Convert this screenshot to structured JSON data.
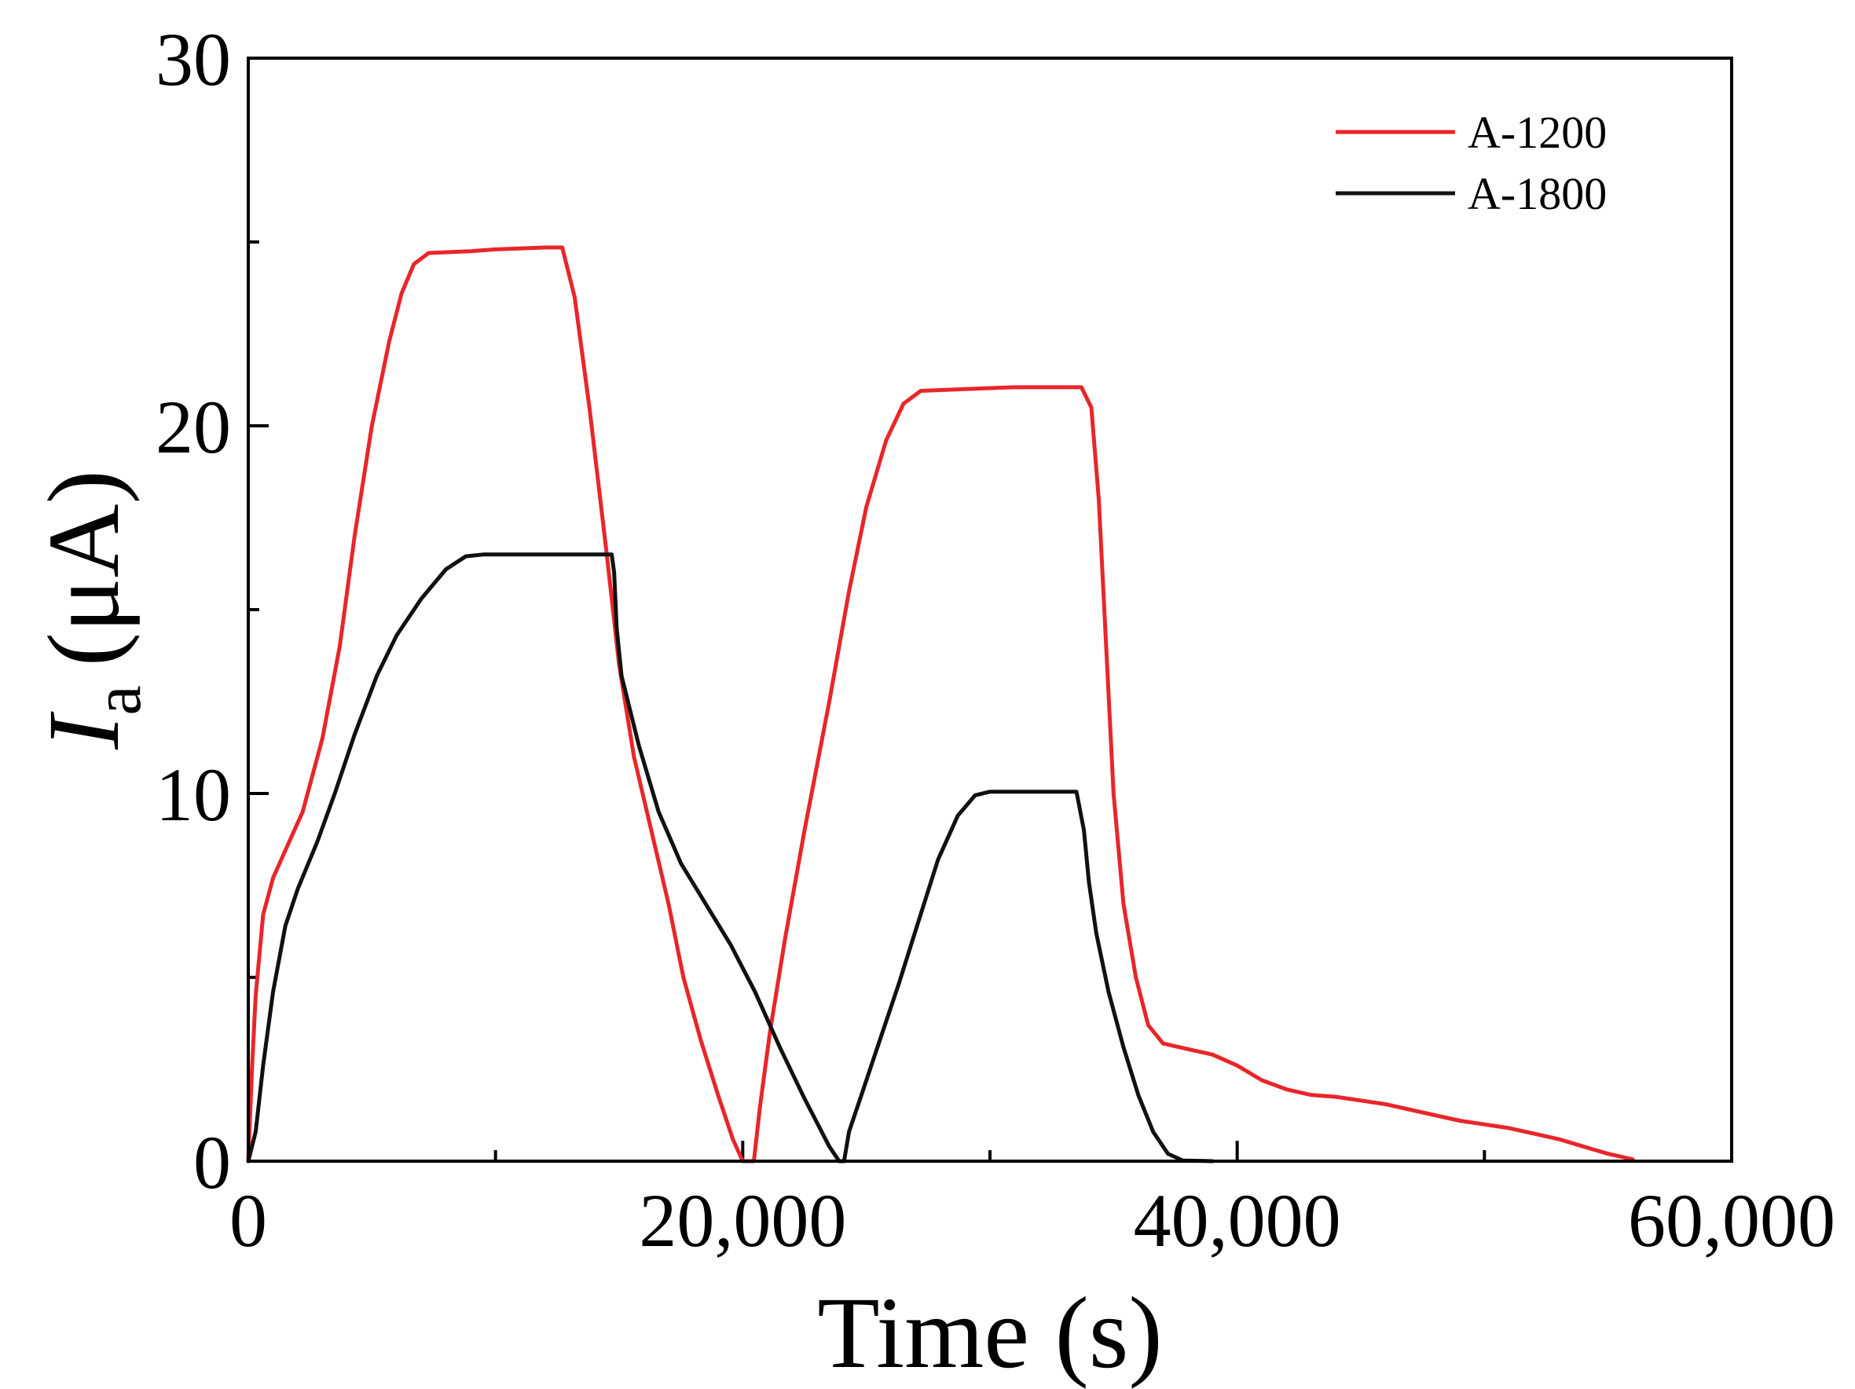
{
  "chart_data": {
    "type": "line",
    "title": "",
    "xlabel": "Time (s)",
    "ylabel_main": "I",
    "ylabel_sub": "a",
    "ylabel_unit": "(μA)",
    "xlim": [
      0,
      60000
    ],
    "ylim": [
      0,
      30
    ],
    "x_major_ticks": [
      0,
      20000,
      40000,
      60000
    ],
    "x_tick_labels": [
      "0",
      "20,000",
      "40,000",
      "60,000"
    ],
    "x_minor_ticks": [
      10000,
      30000,
      50000
    ],
    "y_major_ticks": [
      0,
      10,
      20,
      30
    ],
    "y_tick_labels": [
      "0",
      "10",
      "20",
      "30"
    ],
    "y_minor_ticks": [
      5,
      15,
      25
    ],
    "grid": false,
    "legend_position": "top-right",
    "series": [
      {
        "name": "A-1200",
        "color": "#e8262a",
        "points": [
          [
            0,
            0
          ],
          [
            150,
            2.5
          ],
          [
            300,
            4.5
          ],
          [
            600,
            6.7
          ],
          [
            1000,
            7.7
          ],
          [
            1600,
            8.6
          ],
          [
            2200,
            9.5
          ],
          [
            3000,
            11.5
          ],
          [
            3700,
            14.0
          ],
          [
            4300,
            17.0
          ],
          [
            5000,
            20.0
          ],
          [
            5700,
            22.3
          ],
          [
            6200,
            23.6
          ],
          [
            6700,
            24.4
          ],
          [
            7300,
            24.7
          ],
          [
            9000,
            24.75
          ],
          [
            10000,
            24.8
          ],
          [
            12000,
            24.85
          ],
          [
            12700,
            24.85
          ],
          [
            13200,
            23.5
          ],
          [
            13800,
            20.5
          ],
          [
            14500,
            16.5
          ],
          [
            15000,
            13.5
          ],
          [
            15600,
            11.0
          ],
          [
            16300,
            9.0
          ],
          [
            17000,
            7.0
          ],
          [
            17600,
            5.0
          ],
          [
            18300,
            3.3
          ],
          [
            19000,
            1.8
          ],
          [
            19600,
            0.6
          ],
          [
            20000,
            0
          ],
          [
            20450,
            0
          ],
          [
            20700,
            1.5
          ],
          [
            21100,
            3.5
          ],
          [
            21700,
            6.0
          ],
          [
            22500,
            9.0
          ],
          [
            23500,
            12.5
          ],
          [
            24300,
            15.5
          ],
          [
            25000,
            17.8
          ],
          [
            25800,
            19.6
          ],
          [
            26500,
            20.6
          ],
          [
            27200,
            20.95
          ],
          [
            29000,
            21.0
          ],
          [
            31000,
            21.05
          ],
          [
            33700,
            21.05
          ],
          [
            34100,
            20.5
          ],
          [
            34400,
            18.0
          ],
          [
            34700,
            14.0
          ],
          [
            35000,
            10.0
          ],
          [
            35400,
            7.0
          ],
          [
            35900,
            5.0
          ],
          [
            36400,
            3.7
          ],
          [
            37000,
            3.2
          ],
          [
            38000,
            3.05
          ],
          [
            39000,
            2.9
          ],
          [
            40000,
            2.6
          ],
          [
            41000,
            2.2
          ],
          [
            42000,
            1.95
          ],
          [
            43000,
            1.8
          ],
          [
            44000,
            1.75
          ],
          [
            45000,
            1.65
          ],
          [
            46000,
            1.55
          ],
          [
            47000,
            1.4
          ],
          [
            48000,
            1.25
          ],
          [
            49000,
            1.1
          ],
          [
            50000,
            1.0
          ],
          [
            51000,
            0.9
          ],
          [
            52000,
            0.75
          ],
          [
            53000,
            0.6
          ],
          [
            54000,
            0.4
          ],
          [
            55000,
            0.2
          ],
          [
            56000,
            0.05
          ]
        ]
      },
      {
        "name": "A-1800",
        "color": "#111111",
        "points": [
          [
            0,
            0
          ],
          [
            300,
            0.8
          ],
          [
            600,
            2.6
          ],
          [
            1000,
            4.6
          ],
          [
            1500,
            6.4
          ],
          [
            2000,
            7.4
          ],
          [
            2800,
            8.7
          ],
          [
            3500,
            10.0
          ],
          [
            4300,
            11.6
          ],
          [
            5200,
            13.2
          ],
          [
            6000,
            14.3
          ],
          [
            7000,
            15.3
          ],
          [
            8000,
            16.1
          ],
          [
            8800,
            16.45
          ],
          [
            9500,
            16.5
          ],
          [
            11000,
            16.5
          ],
          [
            12500,
            16.5
          ],
          [
            14700,
            16.5
          ],
          [
            14800,
            16.0
          ],
          [
            14900,
            14.5
          ],
          [
            15100,
            13.2
          ],
          [
            15800,
            11.3
          ],
          [
            16600,
            9.5
          ],
          [
            17500,
            8.1
          ],
          [
            18500,
            7.0
          ],
          [
            19500,
            5.9
          ],
          [
            20500,
            4.6
          ],
          [
            21500,
            3.1
          ],
          [
            22500,
            1.7
          ],
          [
            23500,
            0.4
          ],
          [
            23900,
            0
          ],
          [
            24100,
            0
          ],
          [
            24300,
            0.8
          ],
          [
            24800,
            1.8
          ],
          [
            25500,
            3.2
          ],
          [
            26300,
            4.8
          ],
          [
            27100,
            6.5
          ],
          [
            27900,
            8.2
          ],
          [
            28700,
            9.4
          ],
          [
            29400,
            9.95
          ],
          [
            30000,
            10.05
          ],
          [
            31500,
            10.05
          ],
          [
            33500,
            10.05
          ],
          [
            33800,
            9.0
          ],
          [
            34000,
            7.6
          ],
          [
            34300,
            6.2
          ],
          [
            34800,
            4.6
          ],
          [
            35400,
            3.1
          ],
          [
            36000,
            1.8
          ],
          [
            36600,
            0.8
          ],
          [
            37200,
            0.2
          ],
          [
            37800,
            0.02
          ],
          [
            39000,
            0
          ]
        ]
      }
    ]
  }
}
